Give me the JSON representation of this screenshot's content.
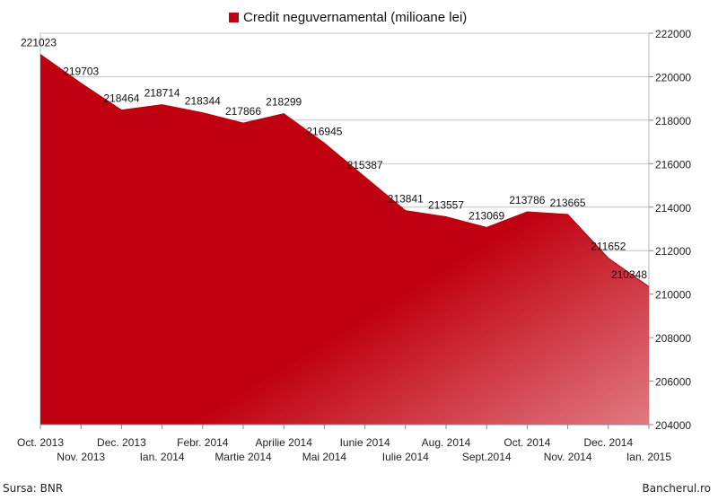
{
  "chart_data": {
    "type": "area",
    "legend": "Credit neguvernamental (milioane lei)",
    "legend_position": "top-center",
    "categories": [
      "Oct. 2013",
      "Nov. 2013",
      "Dec. 2013",
      "Ian. 2014",
      "Febr. 2014",
      "Martie 2014",
      "Aprilie 2014",
      "Mai 2014",
      "Iunie 2014",
      "Iulie 2014",
      "Aug. 2014",
      "Sept.2014",
      "Oct. 2014",
      "Nov. 2014",
      "Dec. 2014",
      "Ian. 2015"
    ],
    "series": [
      {
        "name": "Credit neguvernamental (milioane lei)",
        "values": [
          221023,
          219703,
          218464,
          218714,
          218344,
          217866,
          218299,
          216945,
          215387,
          213841,
          213557,
          213069,
          213786,
          213665,
          211652,
          210348
        ]
      }
    ],
    "ylim": [
      204000,
      222000
    ],
    "y_ticks": [
      204000,
      206000,
      208000,
      210000,
      212000,
      214000,
      216000,
      218000,
      220000,
      222000
    ],
    "y_axis_side": "right",
    "grid": true,
    "color": "#c00010"
  },
  "footer": {
    "source": "Sursa: BNR",
    "site": "Bancherul.ro"
  }
}
